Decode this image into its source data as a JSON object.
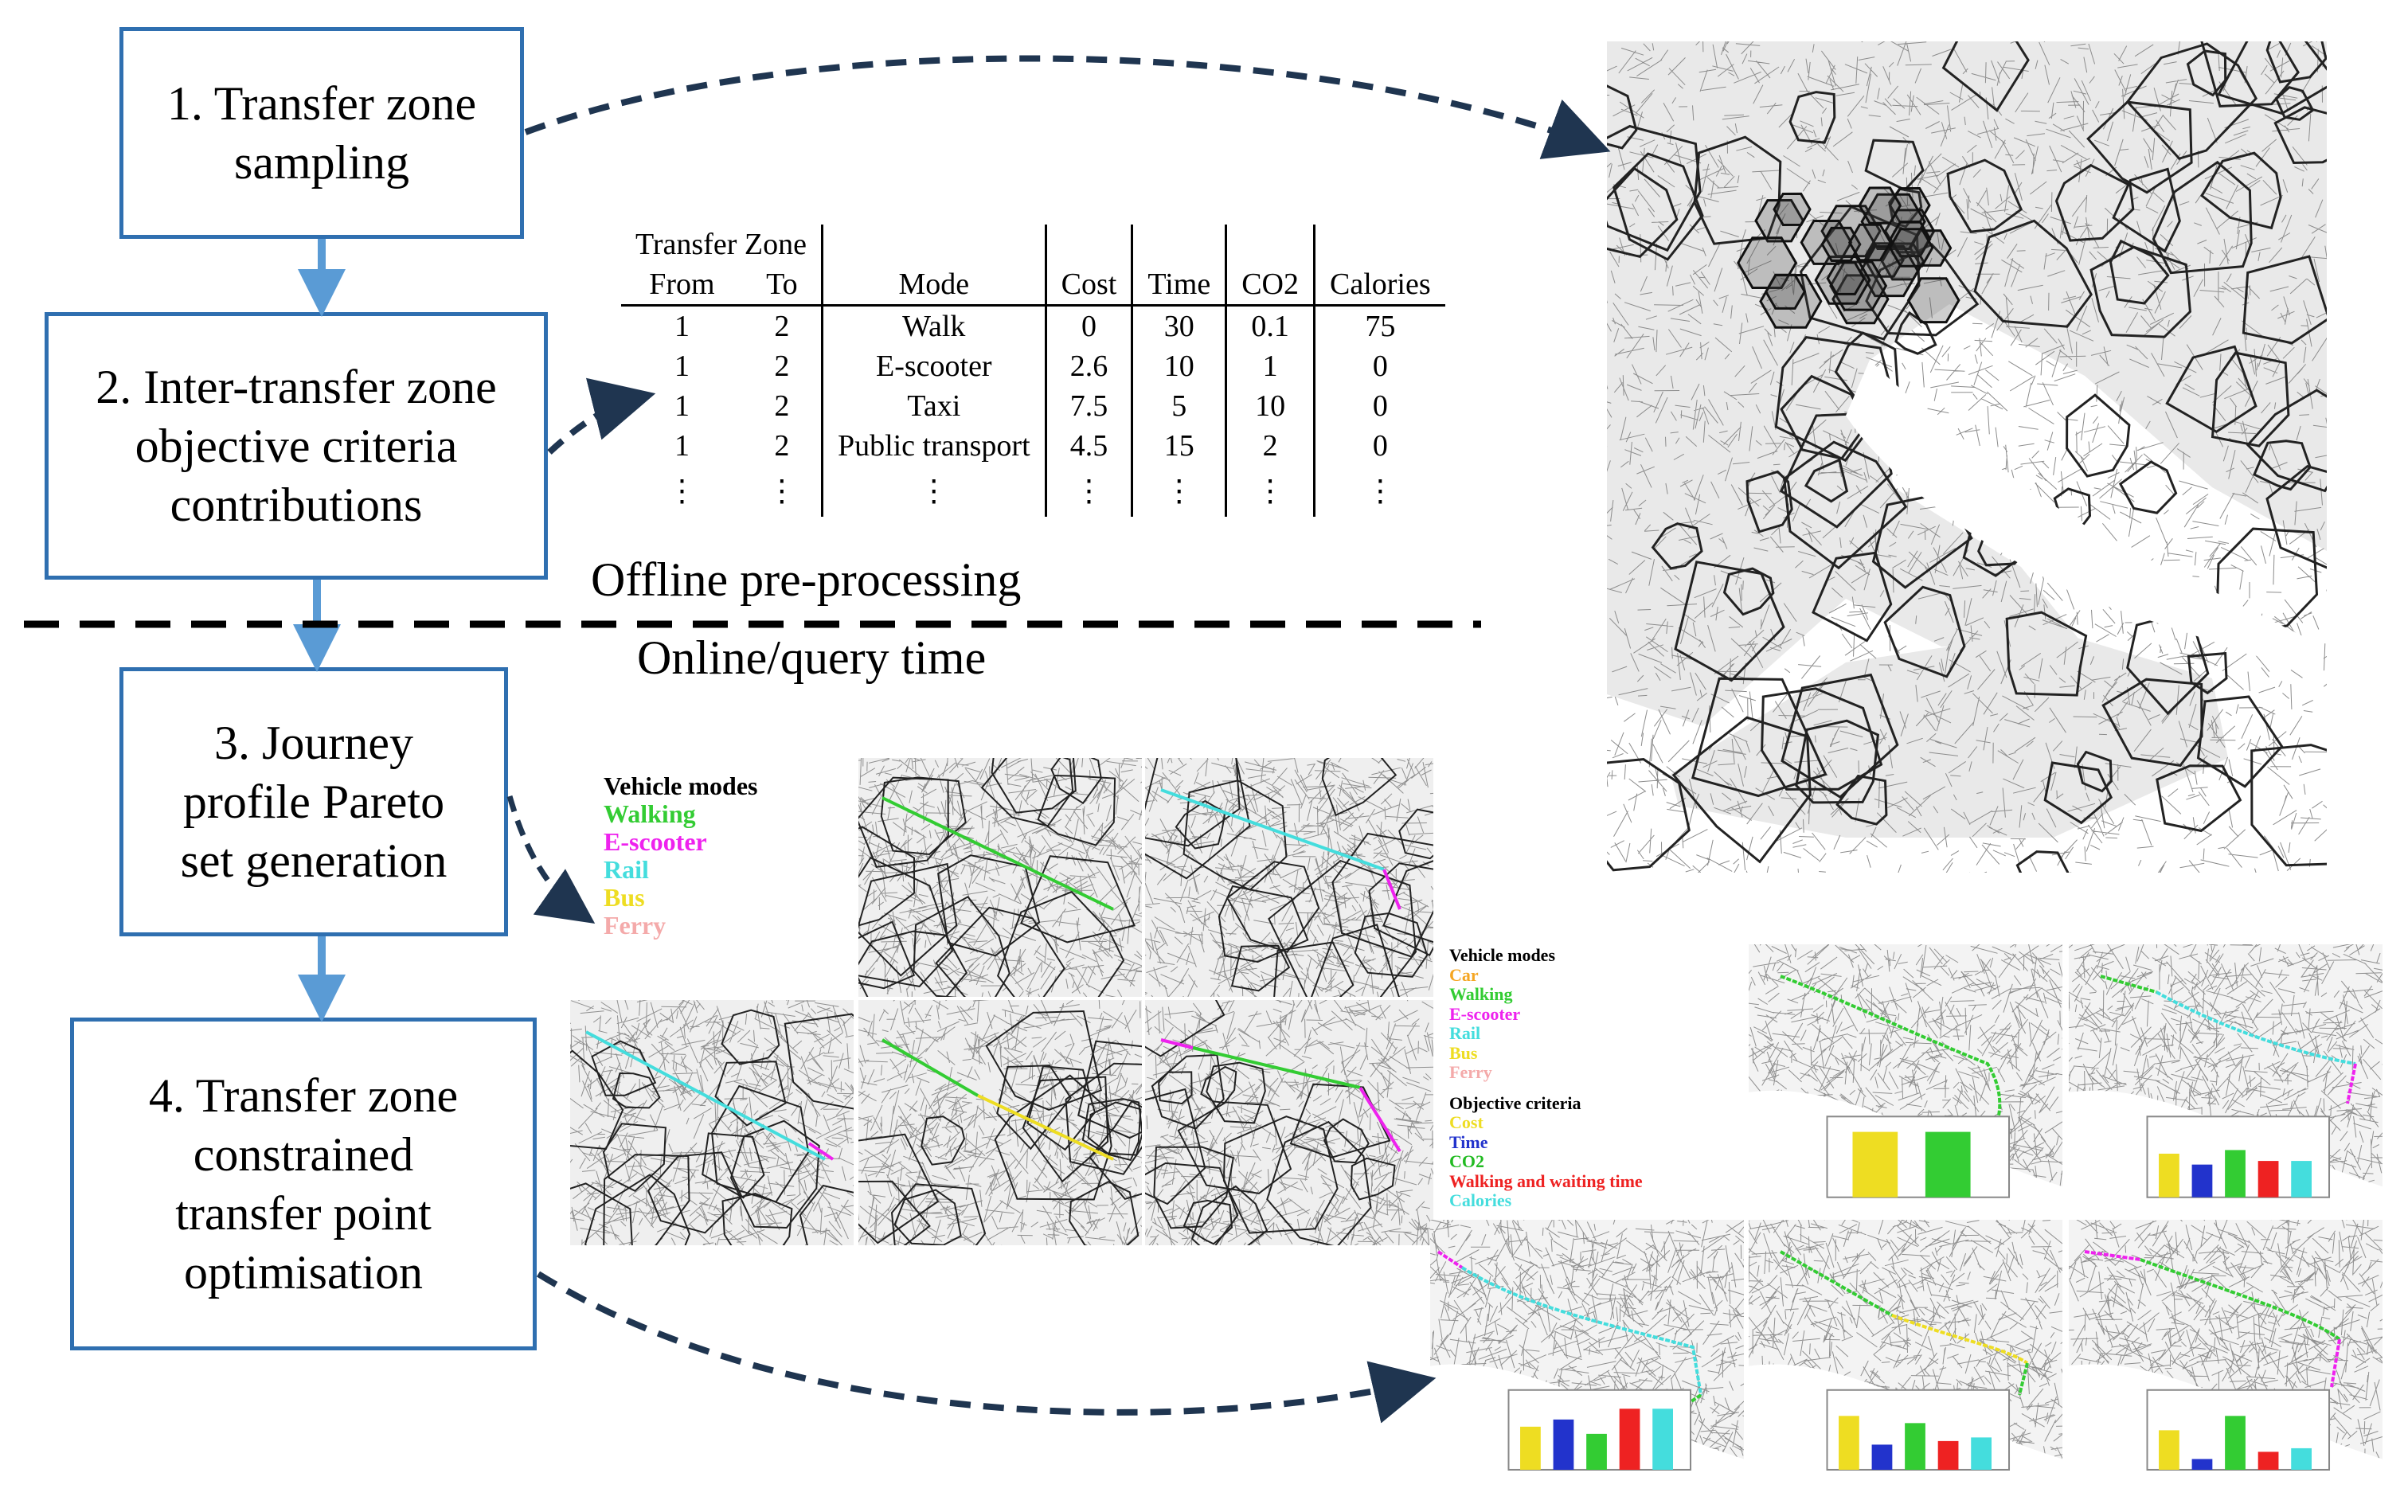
{
  "steps": {
    "s1": [
      "1. Transfer zone",
      "sampling"
    ],
    "s2": [
      "2. Inter-transfer zone",
      "objective criteria",
      "contributions"
    ],
    "s3": [
      "3. Journey",
      "profile Pareto",
      "set generation"
    ],
    "s4": [
      "4. Transfer zone",
      "constrained",
      "transfer point",
      "optimisation"
    ]
  },
  "labels": {
    "offline": "Offline pre-processing",
    "online": "Online/query time"
  },
  "table": {
    "group_header": "Transfer Zone",
    "headers": [
      "From",
      "To",
      "Mode",
      "Cost",
      "Time",
      "CO2",
      "Calories"
    ],
    "rows": [
      [
        "1",
        "2",
        "Walk",
        "0",
        "30",
        "0.1",
        "75"
      ],
      [
        "1",
        "2",
        "E-scooter",
        "2.6",
        "10",
        "1",
        "0"
      ],
      [
        "1",
        "2",
        "Taxi",
        "7.5",
        "5",
        "10",
        "0"
      ],
      [
        "1",
        "2",
        "Public transport",
        "4.5",
        "15",
        "2",
        "0"
      ],
      [
        "⋮",
        "⋮",
        "⋮",
        "⋮",
        "⋮",
        "⋮",
        "⋮"
      ]
    ]
  },
  "legend3": {
    "title": "Vehicle modes",
    "items": [
      {
        "label": "Walking",
        "color": "#33cc33"
      },
      {
        "label": "E-scooter",
        "color": "#ee22ee"
      },
      {
        "label": "Rail",
        "color": "#44dddd"
      },
      {
        "label": "Bus",
        "color": "#eedd22"
      },
      {
        "label": "Ferry",
        "color": "#f4aaaa"
      }
    ]
  },
  "legend4": {
    "title": "Vehicle modes",
    "items": [
      {
        "label": "Car",
        "color": "#f5a623"
      },
      {
        "label": "Walking",
        "color": "#33cc33"
      },
      {
        "label": "E-scooter",
        "color": "#ee22ee"
      },
      {
        "label": "Rail",
        "color": "#44dddd"
      },
      {
        "label": "Bus",
        "color": "#eedd22"
      },
      {
        "label": "Ferry",
        "color": "#f4aaaa"
      }
    ],
    "criteria_title": "Objective criteria",
    "criteria": [
      {
        "label": "Cost",
        "color": "#eedd22"
      },
      {
        "label": "Time",
        "color": "#2233cc"
      },
      {
        "label": "CO2",
        "color": "#22bb22"
      },
      {
        "label": "Walking and waiting time",
        "color": "#ee2222"
      },
      {
        "label": "Calories",
        "color": "#44dddd"
      }
    ]
  },
  "colors": {
    "box_border": "#2f6fb0",
    "arrow": "#1f3550",
    "flow_arrow": "#5a9bd5"
  }
}
